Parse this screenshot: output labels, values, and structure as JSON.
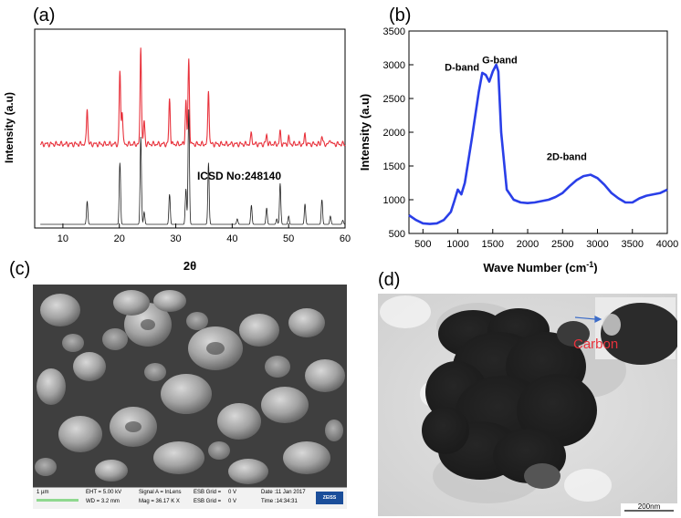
{
  "panels": {
    "a": {
      "label": "(a)"
    },
    "b": {
      "label": "(b)"
    },
    "c": {
      "label": "(c)"
    },
    "d": {
      "label": "(d)"
    }
  },
  "chart_data": [
    {
      "type": "line",
      "panel": "(a)",
      "xlabel": "2θ",
      "ylabel": "Intensity (a.u)",
      "xlim": [
        5,
        60
      ],
      "xticks": [
        10,
        20,
        30,
        40,
        50,
        60
      ],
      "annotation": "ICSD No:248140",
      "series": [
        {
          "color": "#e8323c",
          "baseline": 0.38,
          "peaks": [
            [
              14.3,
              0.27
            ],
            [
              20.1,
              0.53
            ],
            [
              20.5,
              0.25
            ],
            [
              23.8,
              0.72
            ],
            [
              24.4,
              0.17
            ],
            [
              28.9,
              0.33
            ],
            [
              31.8,
              0.32
            ],
            [
              32.3,
              0.62
            ],
            [
              35.8,
              0.4
            ],
            [
              43.4,
              0.08
            ],
            [
              46.1,
              0.07
            ],
            [
              48.5,
              0.09
            ],
            [
              50.0,
              0.05
            ],
            [
              52.9,
              0.07
            ],
            [
              55.9,
              0.06
            ],
            [
              57.4,
              0.04
            ]
          ]
        },
        {
          "color": "#222222",
          "baseline": 0.0,
          "peaks": [
            [
              14.3,
              0.17
            ],
            [
              20.1,
              0.45
            ],
            [
              23.8,
              0.64
            ],
            [
              24.4,
              0.09
            ],
            [
              28.9,
              0.22
            ],
            [
              31.8,
              0.26
            ],
            [
              32.3,
              0.84
            ],
            [
              35.8,
              0.45
            ],
            [
              40.9,
              0.04
            ],
            [
              43.4,
              0.14
            ],
            [
              46.1,
              0.12
            ],
            [
              47.9,
              0.04
            ],
            [
              48.5,
              0.3
            ],
            [
              50.0,
              0.06
            ],
            [
              52.9,
              0.15
            ],
            [
              55.9,
              0.18
            ],
            [
              57.4,
              0.06
            ],
            [
              59.6,
              0.03
            ]
          ]
        }
      ]
    },
    {
      "type": "line",
      "panel": "(b)",
      "xlabel": "Wave Number (cm",
      "xlabel_sup": "-1",
      "xlabel_close": ")",
      "ylabel": "Intensity (a.u)",
      "xlim": [
        300,
        4000
      ],
      "ylim": [
        500,
        3500
      ],
      "xticks": [
        500,
        1000,
        1500,
        2000,
        2500,
        3000,
        3500,
        4000
      ],
      "yticks": [
        500,
        1000,
        1500,
        2000,
        2500,
        3000,
        3500
      ],
      "annotations": [
        {
          "text": "D-band",
          "x": 1060,
          "y": 2910
        },
        {
          "text": "G-band",
          "x": 1600,
          "y": 3020
        },
        {
          "text": "2D-band",
          "x": 2560,
          "y": 1590
        }
      ],
      "series": [
        {
          "color": "#2a3fe8",
          "x": [
            300,
            400,
            500,
            600,
            700,
            800,
            900,
            950,
            1000,
            1050,
            1100,
            1200,
            1300,
            1350,
            1400,
            1450,
            1500,
            1550,
            1580,
            1620,
            1700,
            1800,
            1900,
            2000,
            2100,
            2200,
            2300,
            2400,
            2500,
            2600,
            2700,
            2800,
            2900,
            3000,
            3100,
            3200,
            3300,
            3400,
            3500,
            3600,
            3700,
            3800,
            3900,
            4000
          ],
          "y": [
            770,
            700,
            650,
            640,
            650,
            700,
            820,
            980,
            1150,
            1080,
            1250,
            1900,
            2600,
            2880,
            2850,
            2750,
            2900,
            3000,
            2900,
            2000,
            1150,
            1000,
            960,
            950,
            960,
            980,
            1000,
            1040,
            1100,
            1200,
            1290,
            1350,
            1370,
            1320,
            1220,
            1100,
            1020,
            960,
            960,
            1020,
            1060,
            1080,
            1100,
            1150
          ]
        }
      ]
    }
  ],
  "sem": {
    "scale": "1 µm",
    "eht": "EHT = 5.00 kV",
    "wd": "WD = 3.2 mm",
    "signal": "Signal A = InLens",
    "mag": "Mag = 36.17 K X",
    "esb_grid1": "ESB Grid =",
    "esb_grid2": "ESB Grid =",
    "esb_val1": "0 V",
    "esb_val2": "0 V",
    "date": "Date :11 Jan 2017",
    "time": "Time :14:34:31",
    "brand": "ZEISS"
  },
  "tem": {
    "carbon_label": "Carbon",
    "carbon_color": "#e8323c",
    "scale": "200nm"
  }
}
